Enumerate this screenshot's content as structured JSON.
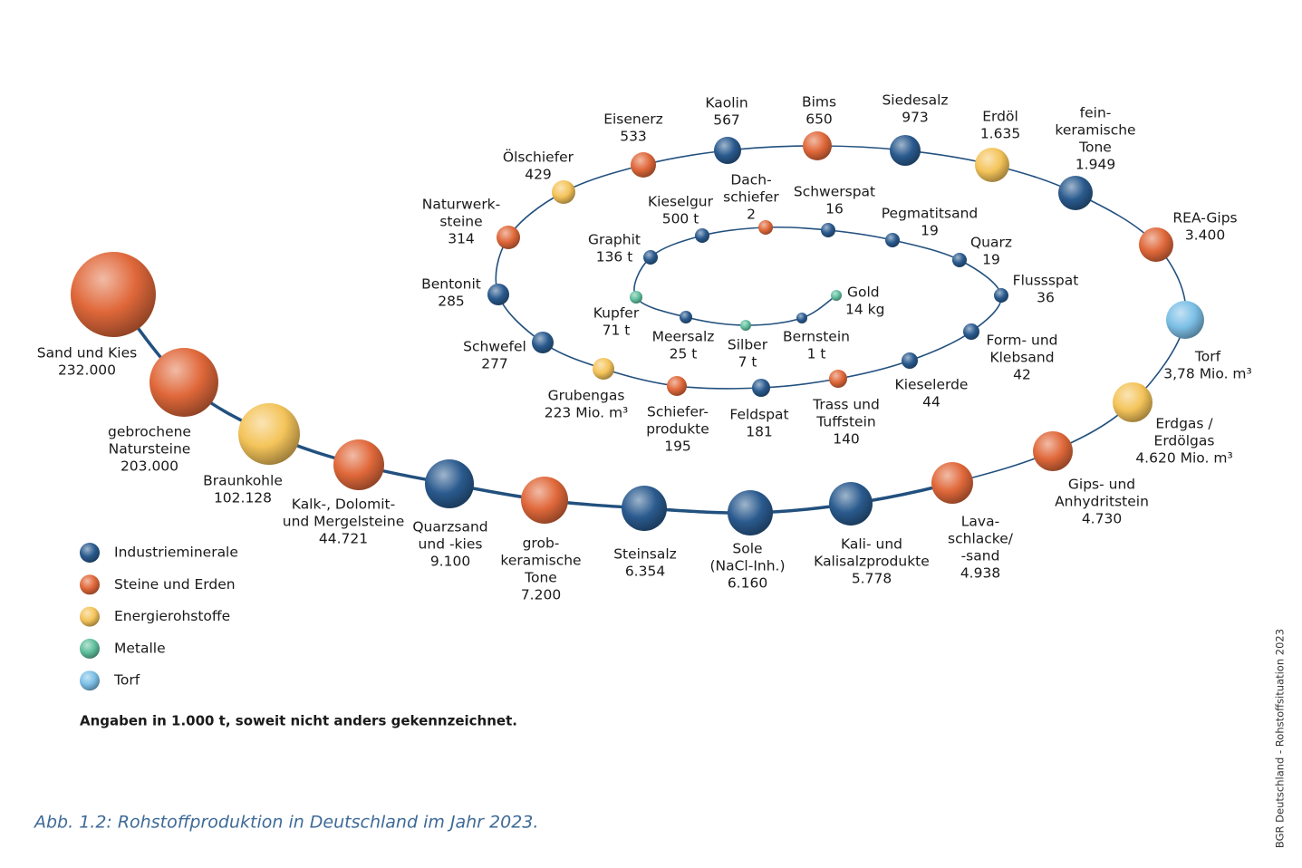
{
  "nodes": [
    {
      "label": [
        "Sand und Kies"
      ],
      "value": "232.000",
      "color": "#e0683a"
    },
    {
      "label": [
        "gebrochene",
        "Natursteine"
      ],
      "value": "203.000",
      "color": "#e0683a"
    },
    {
      "label": [
        "Braunkohle"
      ],
      "value": "102.128",
      "color": "#f4c45a"
    },
    {
      "label": [
        "Kalk-, Dolomit-",
        "und Mergelsteine"
      ],
      "value": "44.721",
      "color": "#e0683a"
    },
    {
      "label": [
        "Quarzsand",
        "und -kies"
      ],
      "value": "9.100",
      "color": "#2a5a8e"
    },
    {
      "label": [
        "grob-",
        "keramische",
        "Tone"
      ],
      "value": "7.200",
      "color": "#e0683a"
    },
    {
      "label": [
        "Steinsalz"
      ],
      "value": "6.354",
      "color": "#2a5a8e"
    },
    {
      "label": [
        "Sole",
        "(NaCl-Inh.)"
      ],
      "value": "6.160",
      "color": "#2a5a8e"
    },
    {
      "label": [
        "Kali- und",
        "Kalisalzprodukte"
      ],
      "value": "5.778",
      "color": "#2a5a8e"
    },
    {
      "label": [
        "Lava-",
        "schlacke/",
        "-sand"
      ],
      "value": "4.938",
      "color": "#e0683a"
    },
    {
      "label": [
        "Gips- und",
        "Anhydritstein"
      ],
      "value": "4.730",
      "color": "#e0683a"
    },
    {
      "label": [
        "Erdgas /",
        "Erdölgas"
      ],
      "value": "4.620 Mio. m³",
      "color": "#f4c45a"
    },
    {
      "label": [
        "Torf"
      ],
      "value": "3,78 Mio. m³",
      "color": "#7cbfe6"
    },
    {
      "label": [
        "REA-Gips"
      ],
      "value": "3.400",
      "color": "#e0683a"
    },
    {
      "label": [
        "fein-",
        "keramische",
        "Tone"
      ],
      "value": "1.949",
      "color": "#2a5a8e"
    },
    {
      "label": [
        "Erdöl"
      ],
      "value": "1.635",
      "color": "#f4c45a"
    },
    {
      "label": [
        "Siedesalz"
      ],
      "value": "973",
      "color": "#2a5a8e"
    },
    {
      "label": [
        "Bims"
      ],
      "value": "650",
      "color": "#e0683a"
    },
    {
      "label": [
        "Kaolin"
      ],
      "value": "567",
      "color": "#2a5a8e"
    },
    {
      "label": [
        "Eisenerz"
      ],
      "value": "533",
      "color": "#e0683a"
    },
    {
      "label": [
        "Ölschiefer"
      ],
      "value": "429",
      "color": "#f4c45a"
    },
    {
      "label": [
        "Naturwerk-",
        "steine"
      ],
      "value": "314",
      "color": "#e0683a"
    },
    {
      "label": [
        "Bentonit"
      ],
      "value": "285",
      "color": "#2a5a8e"
    },
    {
      "label": [
        "Schwefel"
      ],
      "value": "277",
      "color": "#2a5a8e"
    },
    {
      "label": [
        "Grubengas"
      ],
      "value": "223 Mio. m³",
      "color": "#f4c45a"
    },
    {
      "label": [
        "Schiefer-",
        "produkte"
      ],
      "value": "195",
      "color": "#e0683a"
    },
    {
      "label": [
        "Feldspat"
      ],
      "value": "181",
      "color": "#2a5a8e"
    },
    {
      "label": [
        "Trass und",
        "Tuffstein"
      ],
      "value": "140",
      "color": "#e0683a"
    },
    {
      "label": [
        "Kieselerde"
      ],
      "value": "44",
      "color": "#2a5a8e"
    },
    {
      "label": [
        "Form- und",
        "Klebsand"
      ],
      "value": "42",
      "color": "#2a5a8e"
    },
    {
      "label": [
        "Flussspat"
      ],
      "value": "36",
      "color": "#2a5a8e"
    },
    {
      "label": [
        "Quarz"
      ],
      "value": "19",
      "color": "#2a5a8e"
    },
    {
      "label": [
        "Pegmatitsand"
      ],
      "value": "19",
      "color": "#2a5a8e"
    },
    {
      "label": [
        "Schwerspat"
      ],
      "value": "16",
      "color": "#2a5a8e"
    },
    {
      "label": [
        "Dach-",
        "schiefer"
      ],
      "value": "2",
      "color": "#e0683a"
    },
    {
      "label": [
        "Kieselgur"
      ],
      "value": "500 t",
      "color": "#2a5a8e"
    },
    {
      "label": [
        "Graphit"
      ],
      "value": "136 t",
      "color": "#2a5a8e"
    },
    {
      "label": [
        "Kupfer"
      ],
      "value": "71 t",
      "color": "#5fbf9d"
    },
    {
      "label": [
        "Meersalz"
      ],
      "value": "25 t",
      "color": "#2a5a8e"
    },
    {
      "label": [
        "Silber"
      ],
      "value": "7 t",
      "color": "#5fbf9d"
    },
    {
      "label": [
        "Bernstein"
      ],
      "value": "1 t",
      "color": "#2a5a8e"
    },
    {
      "label": [
        "Gold"
      ],
      "value": "14 kg",
      "color": "#5fbf9d"
    }
  ],
  "legend": [
    {
      "label": "Industrieminerale",
      "color": "#2a5a8e"
    },
    {
      "label": "Steine und Erden",
      "color": "#e0683a"
    },
    {
      "label": "Energierohstoffe",
      "color": "#f4c45a"
    },
    {
      "label": "Metalle",
      "color": "#5fbf9d"
    },
    {
      "label": "Torf",
      "color": "#7cbfe6"
    }
  ],
  "note": "Angaben in 1.000 t, soweit nicht anders gekennzeichnet.",
  "caption": "Abb. 1.2: Rohstoffproduktion in Deutschland im Jahr 2023.",
  "source": "BGR Deutschland - Rohstoffsituation 2023"
}
